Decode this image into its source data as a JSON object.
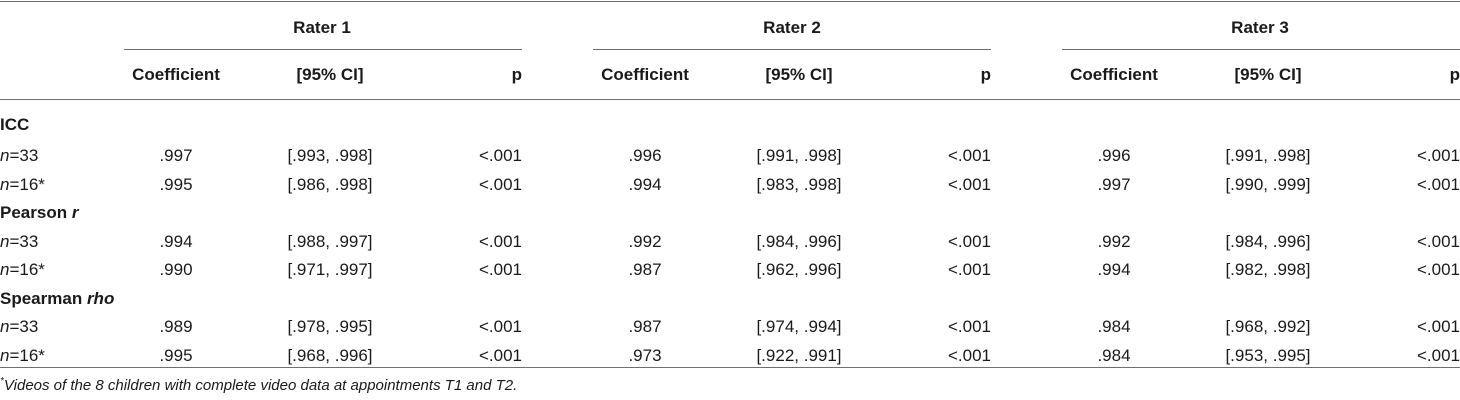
{
  "table": {
    "raters": [
      "Rater 1",
      "Rater 2",
      "Rater 3"
    ],
    "subheaders": [
      "Coefficient",
      "[95% CI]",
      "p"
    ],
    "sections": [
      {
        "title": "ICC",
        "title_italic": "",
        "rows": [
          {
            "n_prefix": "n",
            "n_suffix": "=33",
            "cells": [
              ".997",
              "[.993, .998]",
              "<.001",
              ".996",
              "[.991, .998]",
              "<.001",
              ".996",
              "[.991, .998]",
              "<.001"
            ]
          },
          {
            "n_prefix": "n",
            "n_suffix": "=16*",
            "cells": [
              ".995",
              "[.986, .998]",
              "<.001",
              ".994",
              "[.983, .998]",
              "<.001",
              ".997",
              "[.990, .999]",
              "<.001"
            ]
          }
        ]
      },
      {
        "title": "Pearson ",
        "title_italic": "r",
        "rows": [
          {
            "n_prefix": "n",
            "n_suffix": "=33",
            "cells": [
              ".994",
              "[.988, .997]",
              "<.001",
              ".992",
              "[.984, .996]",
              "<.001",
              ".992",
              "[.984, .996]",
              "<.001"
            ]
          },
          {
            "n_prefix": "n",
            "n_suffix": "=16*",
            "cells": [
              ".990",
              "[.971, .997]",
              "<.001",
              ".987",
              "[.962, .996]",
              "<.001",
              ".994",
              "[.982, .998]",
              "<.001"
            ]
          }
        ]
      },
      {
        "title": "Spearman ",
        "title_italic": "rho",
        "rows": [
          {
            "n_prefix": "n",
            "n_suffix": "=33",
            "cells": [
              ".989",
              "[.978, .995]",
              "<.001",
              ".987",
              "[.974, .994]",
              "<.001",
              ".984",
              "[.968, .992]",
              "<.001"
            ]
          },
          {
            "n_prefix": "n",
            "n_suffix": "=16*",
            "cells": [
              ".995",
              "[.968, .996]",
              "<.001",
              ".973",
              "[.922, .991]",
              "<.001",
              ".984",
              "[.953, .995]",
              "<.001"
            ]
          }
        ]
      }
    ]
  },
  "footnote": {
    "marker": "*",
    "text": "Videos of the 8 children with complete video data at appointments T1 and T2."
  }
}
